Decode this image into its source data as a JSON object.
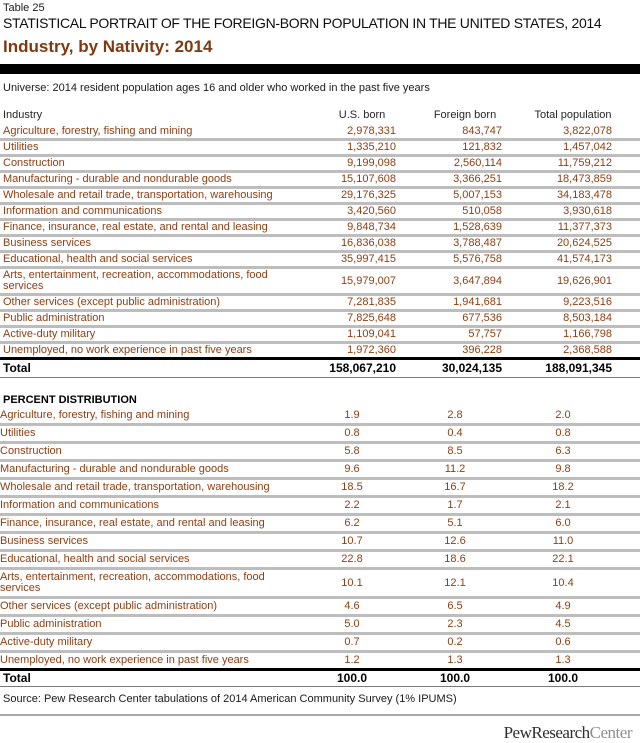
{
  "header": {
    "table_label": "Table 25",
    "title": "STATISTICAL PORTRAIT OF THE FOREIGN-BORN POPULATION IN THE UNITED STATES, 2014",
    "subtitle": "Industry, by Nativity: 2014",
    "universe": "Universe: 2014 resident population ages 16 and older who worked in the past five years"
  },
  "columns": {
    "industry": "Industry",
    "us_born": "U.S. born",
    "foreign_born": "Foreign born",
    "total_population": "Total population"
  },
  "counts": {
    "rows": [
      {
        "label": "Agriculture, forestry, fishing and mining",
        "us_born": "2,978,331",
        "foreign_born": "843,747",
        "total": "3,822,078"
      },
      {
        "label": "Utilities",
        "us_born": "1,335,210",
        "foreign_born": "121,832",
        "total": "1,457,042"
      },
      {
        "label": "Construction",
        "us_born": "9,199,098",
        "foreign_born": "2,560,114",
        "total": "11,759,212"
      },
      {
        "label": "Manufacturing - durable and nondurable goods",
        "us_born": "15,107,608",
        "foreign_born": "3,366,251",
        "total": "18,473,859"
      },
      {
        "label": "Wholesale and retail trade, transportation, warehousing",
        "us_born": "29,176,325",
        "foreign_born": "5,007,153",
        "total": "34,183,478"
      },
      {
        "label": "Information and communications",
        "us_born": "3,420,560",
        "foreign_born": "510,058",
        "total": "3,930,618"
      },
      {
        "label": "Finance, insurance, real estate, and rental and leasing",
        "us_born": "9,848,734",
        "foreign_born": "1,528,639",
        "total": "11,377,373"
      },
      {
        "label": "Business services",
        "us_born": "16,836,038",
        "foreign_born": "3,788,487",
        "total": "20,624,525"
      },
      {
        "label": "Educational, health and social services",
        "us_born": "35,997,415",
        "foreign_born": "5,576,758",
        "total": "41,574,173"
      },
      {
        "label": "Arts, entertainment, recreation, accommodations, food services",
        "us_born": "15,979,007",
        "foreign_born": "3,647,894",
        "total": "19,626,901"
      },
      {
        "label": "Other services (except public administration)",
        "us_born": "7,281,835",
        "foreign_born": "1,941,681",
        "total": "9,223,516"
      },
      {
        "label": "Public administration",
        "us_born": "7,825,648",
        "foreign_born": "677,536",
        "total": "8,503,184"
      },
      {
        "label": "Active-duty military",
        "us_born": "1,109,041",
        "foreign_born": "57,757",
        "total": "1,166,798"
      },
      {
        "label": "Unemployed, no work experience in past five years",
        "us_born": "1,972,360",
        "foreign_born": "396,228",
        "total": "2,368,588"
      }
    ],
    "total": {
      "label": "Total",
      "us_born": "158,067,210",
      "foreign_born": "30,024,135",
      "total": "188,091,345"
    }
  },
  "percent": {
    "section_label": "PERCENT DISTRIBUTION",
    "rows": [
      {
        "label": "Agriculture, forestry, fishing and mining",
        "us_born": "1.9",
        "foreign_born": "2.8",
        "total": "2.0"
      },
      {
        "label": "Utilities",
        "us_born": "0.8",
        "foreign_born": "0.4",
        "total": "0.8"
      },
      {
        "label": "Construction",
        "us_born": "5.8",
        "foreign_born": "8.5",
        "total": "6.3"
      },
      {
        "label": "Manufacturing - durable and nondurable goods",
        "us_born": "9.6",
        "foreign_born": "11.2",
        "total": "9.8"
      },
      {
        "label": "Wholesale and retail trade, transportation, warehousing",
        "us_born": "18.5",
        "foreign_born": "16.7",
        "total": "18.2"
      },
      {
        "label": "Information and communications",
        "us_born": "2.2",
        "foreign_born": "1.7",
        "total": "2.1"
      },
      {
        "label": "Finance, insurance, real estate, and rental and leasing",
        "us_born": "6.2",
        "foreign_born": "5.1",
        "total": "6.0"
      },
      {
        "label": "Business services",
        "us_born": "10.7",
        "foreign_born": "12.6",
        "total": "11.0"
      },
      {
        "label": "Educational, health and social services",
        "us_born": "22.8",
        "foreign_born": "18.6",
        "total": "22.1"
      },
      {
        "label": "Arts, entertainment, recreation, accommodations, food services",
        "us_born": "10.1",
        "foreign_born": "12.1",
        "total": "10.4"
      },
      {
        "label": "Other services (except public administration)",
        "us_born": "4.6",
        "foreign_born": "6.5",
        "total": "4.9"
      },
      {
        "label": "Public administration",
        "us_born": "5.0",
        "foreign_born": "2.3",
        "total": "4.5"
      },
      {
        "label": "Active-duty military",
        "us_born": "0.7",
        "foreign_born": "0.2",
        "total": "0.6"
      },
      {
        "label": "Unemployed, no work experience in past five years",
        "us_born": "1.2",
        "foreign_born": "1.3",
        "total": "1.3"
      }
    ],
    "total": {
      "label": "Total",
      "us_born": "100.0",
      "foreign_born": "100.0",
      "total": "100.0"
    }
  },
  "footer": {
    "source": "Source: Pew Research Center tabulations of 2014 American Community Survey (1% IPUMS)",
    "logo_primary": "PewResearch",
    "logo_secondary": "Center"
  },
  "colors": {
    "accent_brown": "#8e3e12",
    "subtitle_brown": "#7c3a10",
    "divider_gray": "#bdbdbd",
    "bar_black": "#000000"
  }
}
